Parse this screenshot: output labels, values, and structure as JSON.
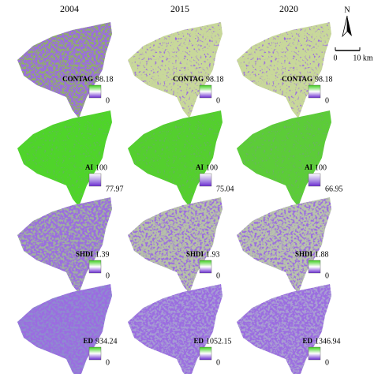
{
  "column_years": [
    "2004",
    "2015",
    "2020"
  ],
  "rows": [
    {
      "metric": "CONTAG",
      "panels": [
        {
          "max": 98.18,
          "min": 0
        },
        {
          "max": 98.18,
          "min": 0
        },
        {
          "max": 98.18,
          "min": 0
        }
      ]
    },
    {
      "metric": "AI",
      "panels": [
        {
          "max": 100,
          "min": 77.97
        },
        {
          "max": 100,
          "min": 75.04
        },
        {
          "max": 100,
          "min": 66.95
        }
      ]
    },
    {
      "metric": "SHDI",
      "panels": [
        {
          "max": 1.39,
          "min": 0
        },
        {
          "max": 1.93,
          "min": 0
        },
        {
          "max": 1.88,
          "min": 0
        }
      ]
    },
    {
      "metric": "ED",
      "panels": [
        {
          "max": 934.24,
          "min": 0
        },
        {
          "max": 1052.15,
          "min": 0
        },
        {
          "max": 1346.94,
          "min": 0
        }
      ]
    }
  ],
  "north_arrow": "N",
  "scale_bar": {
    "start": 0,
    "end": "10 km"
  }
}
